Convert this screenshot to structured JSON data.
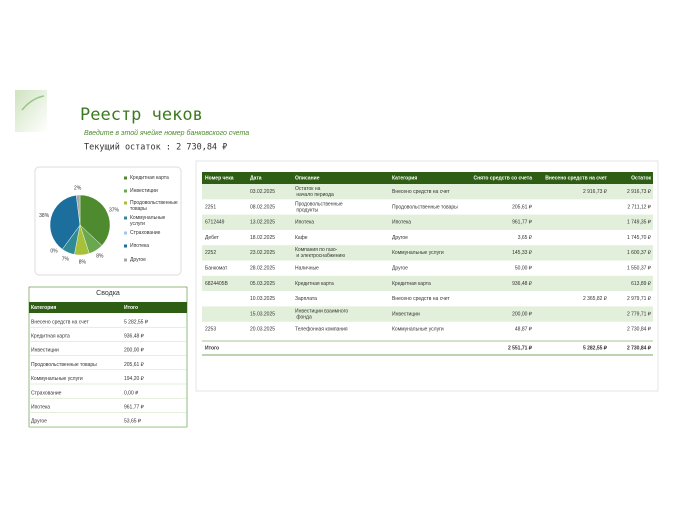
{
  "header": {
    "title": "Реестр чеков",
    "hint": "Введите в этой ячейке номер банковского счета",
    "balance": "Текущий остаток : 2 730,84 ₽"
  },
  "chart_data": {
    "type": "pie",
    "categories": [
      "Кредитная карта",
      "Инвестиции",
      "Продовольственные товары",
      "Коммунальные услуги",
      "Страхование",
      "Ипотека",
      "Другое"
    ],
    "values": [
      37,
      8,
      8,
      7,
      0,
      38,
      2
    ],
    "value_labels": [
      "37%",
      "8%",
      "8%",
      "7%",
      "0%",
      "38%",
      "2%"
    ],
    "colors": [
      "#4e8a2e",
      "#6aa84f",
      "#a8bf3a",
      "#2f8a96",
      "#9fc5e8",
      "#1c6e9c",
      "#a6a6a6"
    ]
  },
  "summary": {
    "title": "Сводка",
    "columns": [
      "Категория",
      "Итого"
    ],
    "rows": [
      [
        "Внесено средств на счет",
        "5 282,55 ₽"
      ],
      [
        "Кредитная карта",
        "936,48 ₽"
      ],
      [
        "Инвестиции",
        "200,00 ₽"
      ],
      [
        "Продовольственные товары",
        "205,61 ₽"
      ],
      [
        "Коммунальные услуги",
        "194,20 ₽"
      ],
      [
        "Страхование",
        "0,00 ₽"
      ],
      [
        "Ипотека",
        "961,77 ₽"
      ],
      [
        "Другое",
        "53,65 ₽"
      ]
    ]
  },
  "table": {
    "columns": [
      "Номер чека",
      "Дата",
      "Описание",
      "Категория",
      "Снято средств со счета",
      "Внесено средств на счет",
      "Остаток"
    ],
    "rows": [
      [
        null,
        "03.02.2025",
        "Остаток на начало периода",
        "Внесено средств на счет",
        null,
        "2 916,73 ₽",
        "2 916,73 ₽"
      ],
      [
        "2251",
        "08.02.2025",
        "Продовольственные продукты",
        "Продовольственные товары",
        "205,61 ₽",
        null,
        "2 711,12 ₽"
      ],
      [
        "6712449",
        "13.02.2025",
        "Ипотека",
        "Ипотека",
        "961,77 ₽",
        null,
        "1 749,35 ₽"
      ],
      [
        "Дебет",
        "18.02.2025",
        "Кафе",
        "Другое",
        "3,65 ₽",
        null,
        "1 745,70 ₽"
      ],
      [
        "2252",
        "23.02.2025",
        "Компания по газо- и электроснабжению",
        "Коммунальные услуги",
        "145,33 ₽",
        null,
        "1 600,37 ₽"
      ],
      [
        "Банкомат",
        "28.02.2025",
        "Наличные",
        "Другое",
        "50,00 ₽",
        null,
        "1 550,37 ₽"
      ],
      [
        "6824405B",
        "05.03.2025",
        "Кредитная карта",
        "Кредитная карта",
        "936,48 ₽",
        null,
        "613,89 ₽"
      ],
      [
        null,
        "10.03.2025",
        "Зарплата",
        "Внесено средств на счет",
        null,
        "2 365,82 ₽",
        "2 979,71 ₽"
      ],
      [
        null,
        "15.03.2025",
        "Инвестиции взаимного фонда",
        "Инвестиции",
        "200,00 ₽",
        null,
        "2 779,71 ₽"
      ],
      [
        "2253",
        "20.03.2025",
        "Телефонная компания",
        "Коммунальные услуги",
        "48,87 ₽",
        null,
        "2 730,84 ₽"
      ]
    ],
    "total": [
      "Итого",
      null,
      null,
      null,
      "2 551,71 ₽",
      "5 282,55 ₽",
      "2 730,84 ₽"
    ]
  }
}
